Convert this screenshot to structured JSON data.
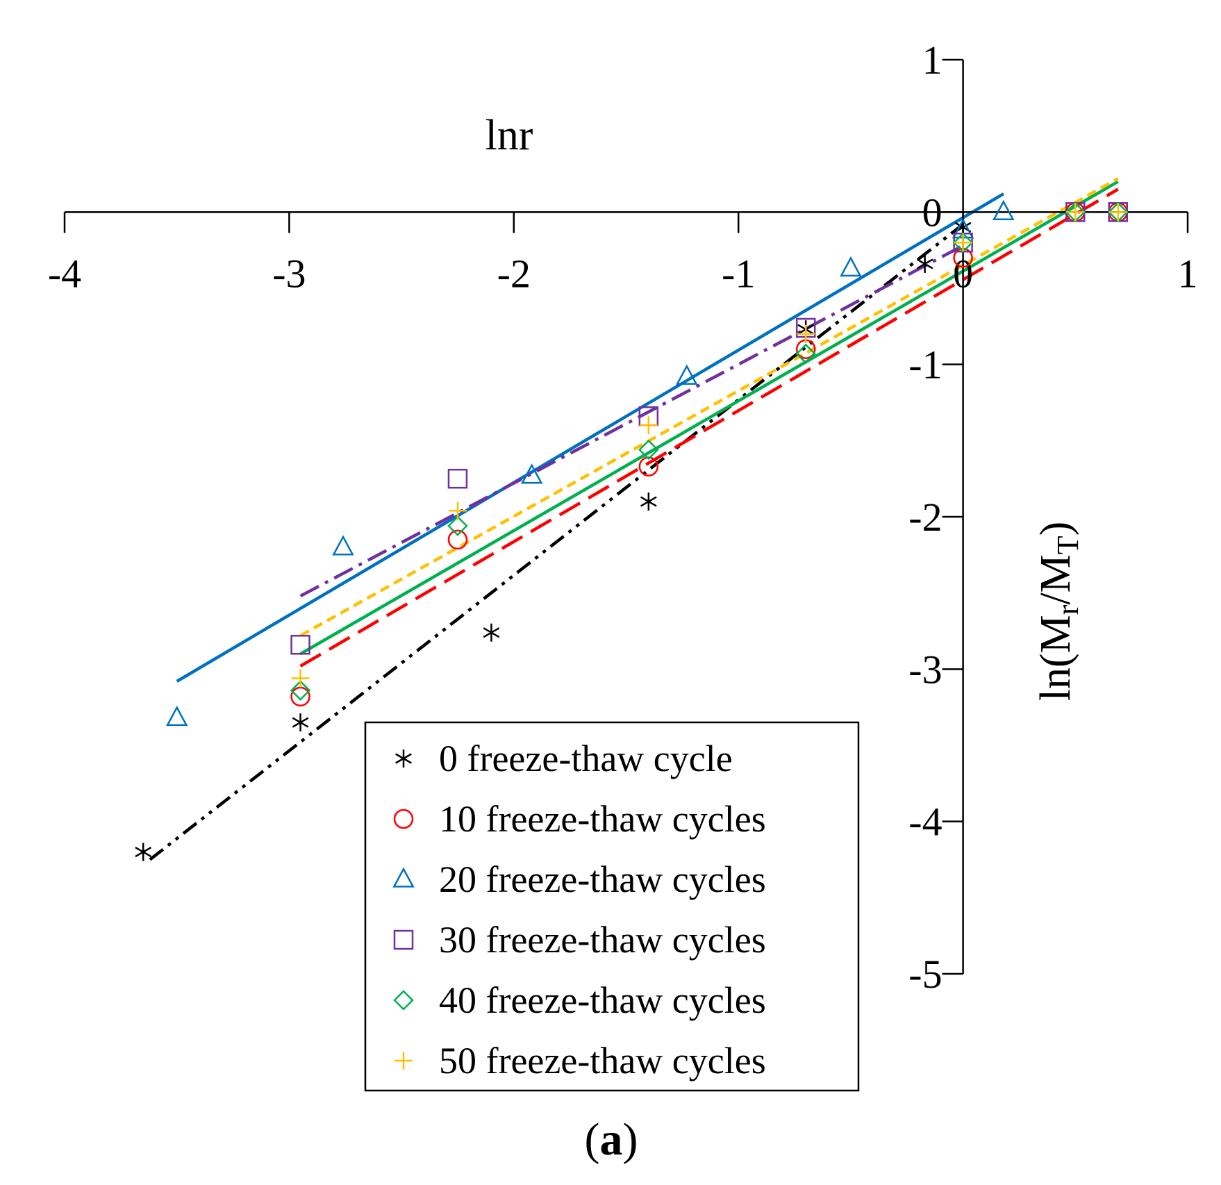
{
  "chart_data": {
    "type": "scatter",
    "title": "",
    "xlabel": "lnr",
    "ylabel": "ln(Mr/MT)",
    "ylabel_base": "ln(M",
    "ylabel_sub1": "r",
    "ylabel_mid": "/M",
    "ylabel_sub2": "T",
    "ylabel_end": ")",
    "caption_open": "(",
    "caption_letter": "a",
    "caption_close": ")",
    "xlim": [
      -4,
      1
    ],
    "ylim": [
      -5,
      1
    ],
    "x_ticks": [
      -4,
      -3,
      -2,
      -1,
      0,
      1
    ],
    "y_ticks": [
      1,
      0,
      -1,
      -2,
      -3,
      -4,
      -5
    ],
    "x_tick_labels": [
      "-4",
      "-3",
      "-2",
      "-1",
      "0",
      "1"
    ],
    "y_tick_labels": [
      "1",
      "0",
      "-1",
      "-2",
      "-3",
      "-4",
      "-5"
    ],
    "legend_position": "bottom-center",
    "series": [
      {
        "name": "0 freeze-thaw cycle",
        "marker": "asterisk",
        "color": "#000000",
        "line_style": "dash-dot-dot",
        "x": [
          -3.65,
          -2.95,
          -2.1,
          -1.4,
          -0.7,
          -0.17,
          0.0
        ],
        "y": [
          -4.2,
          -3.35,
          -2.76,
          -1.9,
          -0.77,
          -0.34,
          -0.1
        ],
        "fit_x": [
          -3.62,
          0.0
        ],
        "fit_y": [
          -4.25,
          -0.08
        ]
      },
      {
        "name": "10 freeze-thaw cycles",
        "marker": "circle",
        "color": "#ff0000",
        "line_style": "long-dash",
        "x": [
          -2.95,
          -2.25,
          -1.4,
          -0.7,
          0.0,
          0.5,
          0.69
        ],
        "y": [
          -3.18,
          -2.15,
          -1.67,
          -0.9,
          -0.3,
          0.0,
          0.0
        ],
        "fit_x": [
          -2.95,
          0.69
        ],
        "fit_y": [
          -2.98,
          0.15
        ]
      },
      {
        "name": "20 freeze-thaw cycles",
        "marker": "triangle",
        "color": "#0070c0",
        "line_style": "solid",
        "x": [
          -3.5,
          -2.76,
          -1.92,
          -1.23,
          -0.5,
          0.0,
          0.18
        ],
        "y": [
          -3.32,
          -2.2,
          -1.73,
          -1.08,
          -0.37,
          -0.12,
          0.0
        ],
        "fit_x": [
          -3.5,
          0.18
        ],
        "fit_y": [
          -3.08,
          0.12
        ]
      },
      {
        "name": "30 freeze-thaw cycles",
        "marker": "square",
        "color": "#7030a0",
        "line_style": "dash-dot",
        "x": [
          -2.95,
          -2.25,
          -1.4,
          -0.7,
          0.0,
          0.5,
          0.69
        ],
        "y": [
          -2.84,
          -1.75,
          -1.34,
          -0.76,
          -0.2,
          0.0,
          0.0
        ],
        "fit_x": [
          -2.95,
          0.0
        ],
        "fit_y": [
          -2.52,
          -0.22
        ]
      },
      {
        "name": "40 freeze-thaw cycles",
        "marker": "diamond",
        "color": "#00b050",
        "line_style": "solid",
        "x": [
          -2.95,
          -2.25,
          -1.4,
          -0.7,
          0.0,
          0.5,
          0.69
        ],
        "y": [
          -3.14,
          -2.06,
          -1.56,
          -0.93,
          -0.2,
          0.0,
          0.0
        ],
        "fit_x": [
          -2.95,
          0.69
        ],
        "fit_y": [
          -2.9,
          0.2
        ]
      },
      {
        "name": "50 freeze-thaw cycles",
        "marker": "plus",
        "color": "#ffc000",
        "line_style": "short-dash",
        "x": [
          -2.95,
          -2.25,
          -1.4,
          -0.7,
          0.0,
          0.5,
          0.69
        ],
        "y": [
          -3.06,
          -1.96,
          -1.4,
          -0.8,
          -0.2,
          0.0,
          0.0
        ],
        "fit_x": [
          -2.95,
          0.69
        ],
        "fit_y": [
          -2.78,
          0.22
        ]
      }
    ]
  }
}
